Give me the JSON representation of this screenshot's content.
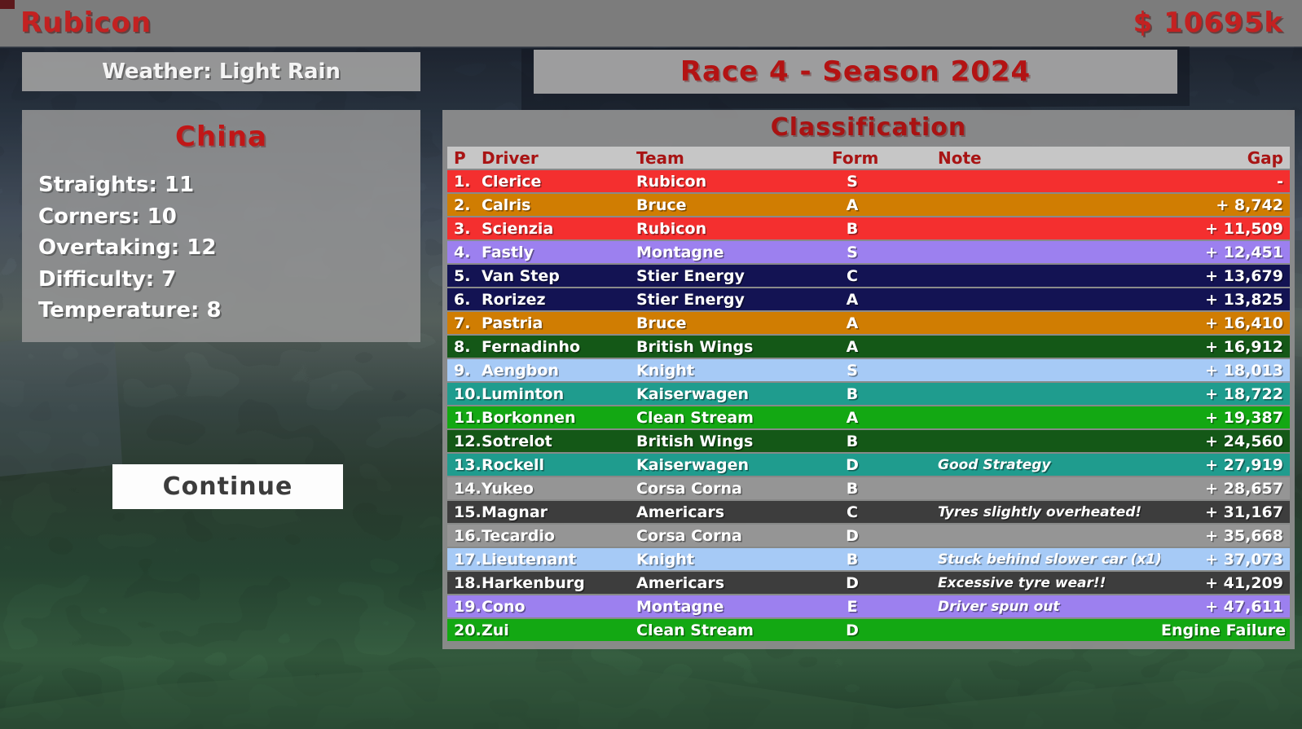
{
  "app": {
    "title": "Rubicon",
    "money": "$ 10695k"
  },
  "banners": {
    "weather": "Weather: Light Rain",
    "race": "Race 4 - Season 2024"
  },
  "track": {
    "name": "China",
    "stats": [
      {
        "label": "Straights",
        "value": "11"
      },
      {
        "label": "Corners",
        "value": "10"
      },
      {
        "label": "Overtaking",
        "value": "12"
      },
      {
        "label": "Difficulty",
        "value": "7"
      },
      {
        "label": "Temperature",
        "value": "8"
      }
    ]
  },
  "actions": {
    "continue_label": "Continue"
  },
  "classification": {
    "title": "Classification",
    "columns": {
      "pos": "P",
      "driver": "Driver",
      "team": "Team",
      "form": "Form",
      "note": "Note",
      "gap": "Gap"
    },
    "team_colors": {
      "Rubicon": "#f42f2f",
      "Bruce": "#d07d02",
      "Montagne": "#9c80ef",
      "Stier Energy": "#131353",
      "British Wings": "#145817",
      "Knight": "#a6caf6",
      "Kaiserwagen": "#1f9c8e",
      "Clean Stream": "#13a813",
      "Corsa Corna": "#959595",
      "Americars": "#3d3d3d"
    },
    "rows": [
      {
        "pos": "1.",
        "driver": "Clerice",
        "team": "Rubicon",
        "form": "S",
        "note": "",
        "gap": "-"
      },
      {
        "pos": "2.",
        "driver": "Calris",
        "team": "Bruce",
        "form": "A",
        "note": "",
        "gap": "+ 8,742"
      },
      {
        "pos": "3.",
        "driver": "Scienzia",
        "team": "Rubicon",
        "form": "B",
        "note": "",
        "gap": "+ 11,509"
      },
      {
        "pos": "4.",
        "driver": "Fastly",
        "team": "Montagne",
        "form": "S",
        "note": "",
        "gap": "+ 12,451"
      },
      {
        "pos": "5.",
        "driver": "Van Step",
        "team": "Stier Energy",
        "form": "C",
        "note": "",
        "gap": "+ 13,679"
      },
      {
        "pos": "6.",
        "driver": "Rorizez",
        "team": "Stier Energy",
        "form": "A",
        "note": "",
        "gap": "+ 13,825"
      },
      {
        "pos": "7.",
        "driver": "Pastria",
        "team": "Bruce",
        "form": "A",
        "note": "",
        "gap": "+ 16,410"
      },
      {
        "pos": "8.",
        "driver": "Fernadinho",
        "team": "British Wings",
        "form": "A",
        "note": "",
        "gap": "+ 16,912"
      },
      {
        "pos": "9.",
        "driver": "Aengbon",
        "team": "Knight",
        "form": "S",
        "note": "",
        "gap": "+ 18,013"
      },
      {
        "pos": "10.",
        "driver": "Luminton",
        "team": "Kaiserwagen",
        "form": "B",
        "note": "",
        "gap": "+ 18,722"
      },
      {
        "pos": "11.",
        "driver": "Borkonnen",
        "team": "Clean Stream",
        "form": "A",
        "note": "",
        "gap": "+ 19,387"
      },
      {
        "pos": "12.",
        "driver": "Sotrelot",
        "team": "British Wings",
        "form": "B",
        "note": "",
        "gap": "+ 24,560"
      },
      {
        "pos": "13.",
        "driver": "Rockell",
        "team": "Kaiserwagen",
        "form": "D",
        "note": "Good Strategy",
        "gap": "+ 27,919"
      },
      {
        "pos": "14.",
        "driver": "Yukeo",
        "team": "Corsa Corna",
        "form": "B",
        "note": "",
        "gap": "+ 28,657"
      },
      {
        "pos": "15.",
        "driver": "Magnar",
        "team": "Americars",
        "form": "C",
        "note": "Tyres slightly overheated!",
        "gap": "+ 31,167"
      },
      {
        "pos": "16.",
        "driver": "Tecardio",
        "team": "Corsa Corna",
        "form": "D",
        "note": "",
        "gap": "+ 35,668"
      },
      {
        "pos": "17.",
        "driver": "Lieutenant",
        "team": "Knight",
        "form": "B",
        "note": "Stuck behind slower car (x1)",
        "gap": "+ 37,073"
      },
      {
        "pos": "18.",
        "driver": "Harkenburg",
        "team": "Americars",
        "form": "D",
        "note": "Excessive tyre wear!!",
        "gap": "+ 41,209"
      },
      {
        "pos": "19.",
        "driver": "Cono",
        "team": "Montagne",
        "form": "E",
        "note": "Driver spun out",
        "gap": "+ 47,611"
      },
      {
        "pos": "20.",
        "driver": "Zui",
        "team": "Clean Stream",
        "form": "D",
        "note": "",
        "gap": "Engine Failure"
      }
    ]
  },
  "colors": {
    "accent_red": "#c32121",
    "dark_red": "#b31313",
    "topbar_gray": "#7c7c7c",
    "panel_gray": "#8f8f8f",
    "header_row_gray": "#c6c6c6",
    "text_white": "#ffffff"
  }
}
